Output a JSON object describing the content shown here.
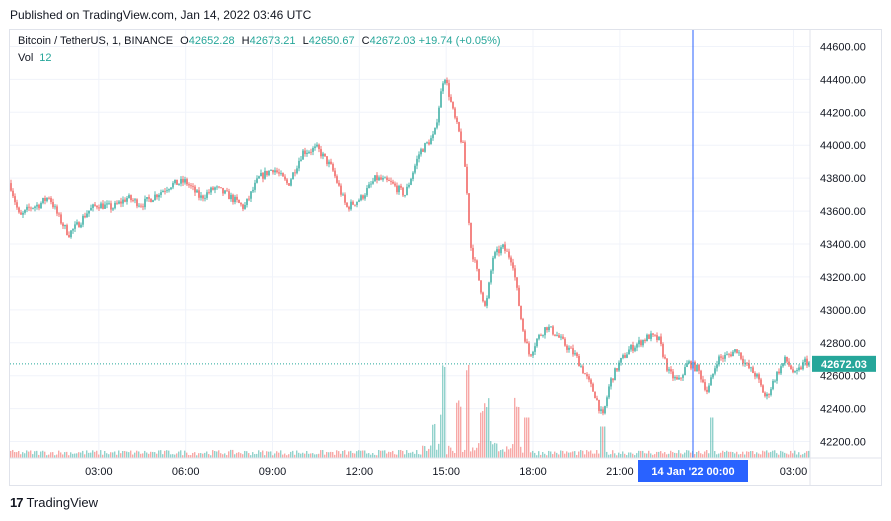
{
  "header": {
    "published": "Published on TradingView.com, Jan 14, 2022 03:46 UTC"
  },
  "legend": {
    "symbol": "Bitcoin / TetherUS, 1, BINANCE",
    "o_label": "O",
    "o_value": "42652.28",
    "h_label": "H",
    "h_value": "42673.21",
    "l_label": "L",
    "l_value": "42650.67",
    "c_label": "C",
    "c_value": "42672.03",
    "change": "+19.74 (+0.05%)",
    "vol_label": "Vol",
    "vol_value": "12"
  },
  "colors": {
    "up": "#26a69a",
    "down": "#ef5350",
    "crosshair": "#2962ff",
    "grid": "#f0f3fa",
    "axis_text": "#131722"
  },
  "footer": {
    "logo_text": "TradingView",
    "logo_icon": "tradingview-logo-icon"
  },
  "chart_data": {
    "type": "candlestick",
    "y_ticks": [
      "44600.00",
      "44400.00",
      "44200.00",
      "44000.00",
      "43800.00",
      "43600.00",
      "43400.00",
      "43200.00",
      "43000.00",
      "42800.00",
      "42600.00",
      "42400.00",
      "42200.00"
    ],
    "x_ticks": [
      "03:00",
      "06:00",
      "09:00",
      "12:00",
      "15:00",
      "18:00",
      "21:00",
      "03:00"
    ],
    "ylim": [
      42100,
      44700
    ],
    "last_price": "42672.03",
    "crosshair_label": "14 Jan '22   00:00",
    "path": [
      [
        "00:00",
        43770
      ],
      [
        "00:20",
        43560
      ],
      [
        "00:40",
        43620
      ],
      [
        "01:00",
        43640
      ],
      [
        "01:20",
        43690
      ],
      [
        "01:40",
        43560
      ],
      [
        "02:00",
        43460
      ],
      [
        "02:20",
        43520
      ],
      [
        "02:40",
        43600
      ],
      [
        "03:00",
        43640
      ],
      [
        "03:30",
        43620
      ],
      [
        "04:00",
        43680
      ],
      [
        "04:30",
        43640
      ],
      [
        "05:00",
        43700
      ],
      [
        "05:30",
        43760
      ],
      [
        "06:00",
        43780
      ],
      [
        "06:30",
        43680
      ],
      [
        "07:00",
        43740
      ],
      [
        "07:30",
        43690
      ],
      [
        "08:00",
        43620
      ],
      [
        "08:30",
        43800
      ],
      [
        "09:00",
        43860
      ],
      [
        "09:30",
        43760
      ],
      [
        "10:00",
        43960
      ],
      [
        "10:30",
        43980
      ],
      [
        "11:00",
        43860
      ],
      [
        "11:30",
        43620
      ],
      [
        "12:00",
        43680
      ],
      [
        "12:30",
        43800
      ],
      [
        "13:00",
        43770
      ],
      [
        "13:30",
        43700
      ],
      [
        "14:00",
        43960
      ],
      [
        "14:30",
        44060
      ],
      [
        "14:50",
        44440
      ],
      [
        "15:10",
        44180
      ],
      [
        "15:30",
        43980
      ],
      [
        "15:45",
        43380
      ],
      [
        "16:00",
        43200
      ],
      [
        "16:15",
        43000
      ],
      [
        "16:30",
        43320
      ],
      [
        "16:50",
        43380
      ],
      [
        "17:10",
        43300
      ],
      [
        "17:30",
        42900
      ],
      [
        "17:45",
        42720
      ],
      [
        "18:00",
        42820
      ],
      [
        "18:20",
        42900
      ],
      [
        "18:40",
        42850
      ],
      [
        "19:00",
        42780
      ],
      [
        "19:20",
        42720
      ],
      [
        "19:40",
        42600
      ],
      [
        "20:00",
        42480
      ],
      [
        "20:15",
        42340
      ],
      [
        "20:30",
        42560
      ],
      [
        "20:50",
        42680
      ],
      [
        "21:10",
        42760
      ],
      [
        "21:30",
        42800
      ],
      [
        "21:50",
        42840
      ],
      [
        "22:10",
        42820
      ],
      [
        "22:30",
        42620
      ],
      [
        "22:50",
        42560
      ],
      [
        "23:10",
        42680
      ],
      [
        "23:30",
        42640
      ],
      [
        "23:50",
        42500
      ],
      [
        "00:10",
        42700
      ],
      [
        "00:30",
        42720
      ],
      [
        "00:50",
        42760
      ],
      [
        "01:10",
        42660
      ],
      [
        "01:30",
        42600
      ],
      [
        "01:50",
        42460
      ],
      [
        "02:10",
        42600
      ],
      [
        "02:30",
        42700
      ],
      [
        "02:50",
        42600
      ],
      [
        "03:10",
        42690
      ],
      [
        "03:20",
        42672
      ]
    ],
    "volume_spikes": [
      [
        "14:30",
        0.35
      ],
      [
        "14:45",
        0.45
      ],
      [
        "14:50",
        1.0
      ],
      [
        "15:20",
        0.55
      ],
      [
        "15:40",
        0.95
      ],
      [
        "16:10",
        0.5
      ],
      [
        "16:20",
        0.55
      ],
      [
        "17:20",
        0.55
      ],
      [
        "17:40",
        0.45
      ],
      [
        "20:15",
        0.35
      ],
      [
        "00:00",
        0.45
      ]
    ]
  }
}
